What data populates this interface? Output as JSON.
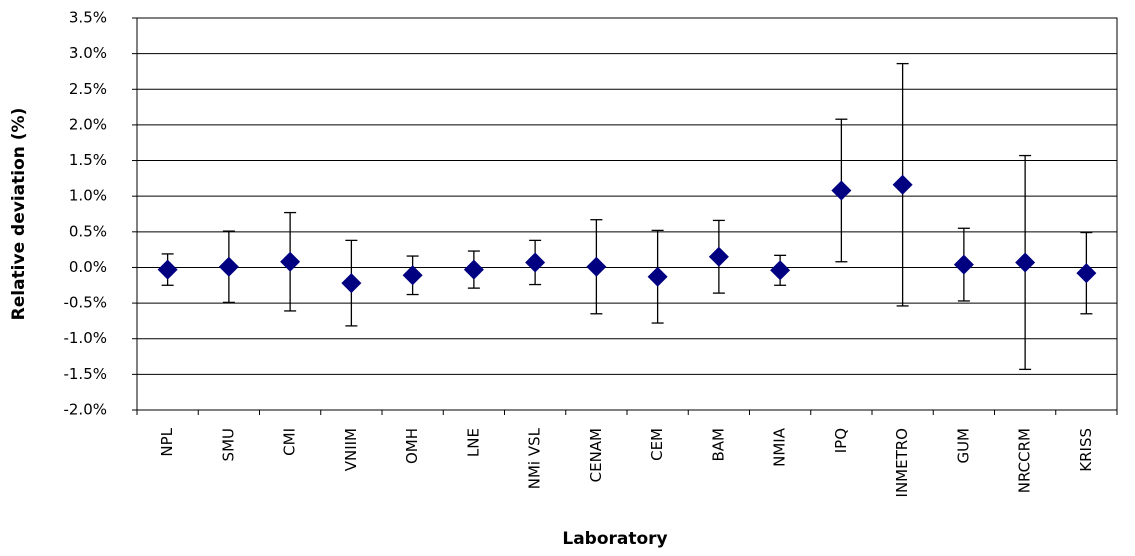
{
  "chart_data": {
    "type": "scatter",
    "x_label": "Laboratory",
    "y_label": "Relative deviation (%)",
    "categories": [
      "NPL",
      "SMU",
      "CMI",
      "VNIIM",
      "OMH",
      "LNE",
      "NMi VSL",
      "CENAM",
      "CEM",
      "BAM",
      "NMIA",
      "IPQ",
      "INMETRO",
      "GUM",
      "NRCCRM",
      "KRISS"
    ],
    "values": [
      -0.03,
      0.01,
      0.08,
      -0.22,
      -0.11,
      -0.03,
      0.07,
      0.01,
      -0.13,
      0.15,
      -0.04,
      1.08,
      1.16,
      0.04,
      0.07,
      -0.08
    ],
    "errors": [
      0.22,
      0.5,
      0.69,
      0.6,
      0.27,
      0.26,
      0.31,
      0.66,
      0.65,
      0.51,
      0.21,
      1.0,
      1.7,
      0.51,
      1.5,
      0.57
    ],
    "color": "#000080",
    "ylim": [
      -2.0,
      3.5
    ],
    "yticks": [
      {
        "value": -2.0,
        "label": "-2.0%"
      },
      {
        "value": -1.5,
        "label": "-1.5%"
      },
      {
        "value": -1.0,
        "label": "-1.0%"
      },
      {
        "value": -0.5,
        "label": "-0.5%"
      },
      {
        "value": 0,
        "label": "0.0%"
      },
      {
        "value": 0.5,
        "label": "0.5%"
      },
      {
        "value": 1.0,
        "label": "1.0%"
      },
      {
        "value": 1.5,
        "label": "1.5%"
      },
      {
        "value": 2.0,
        "label": "2.0%"
      },
      {
        "value": 2.5,
        "label": "2.5%"
      },
      {
        "value": 3.0,
        "label": "3.0%"
      },
      {
        "value": 3.5,
        "label": "3.5%"
      }
    ],
    "grid": true
  }
}
